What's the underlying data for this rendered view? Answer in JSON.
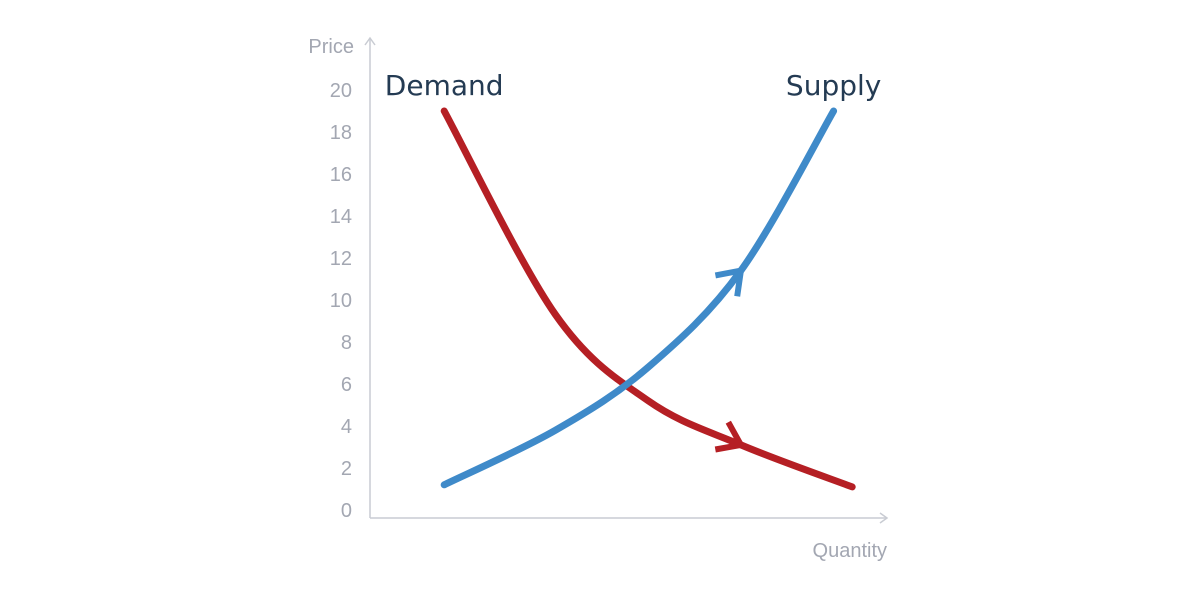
{
  "chart_data": {
    "type": "line",
    "title": "",
    "xlabel": "Quantity",
    "ylabel": "Price",
    "ylim": [
      0,
      20
    ],
    "yticks": [
      0,
      2,
      4,
      6,
      8,
      10,
      12,
      14,
      16,
      18,
      20
    ],
    "grid": false,
    "series": [
      {
        "name": "Demand",
        "color": "#b51f24",
        "points": [
          [
            1.6,
            19
          ],
          [
            4.0,
            9.3
          ],
          [
            6.0,
            5.2
          ],
          [
            8.0,
            3.1
          ],
          [
            10.4,
            1.1
          ]
        ]
      },
      {
        "name": "Supply",
        "color": "#3f8ac9",
        "points": [
          [
            1.6,
            1.2
          ],
          [
            4.0,
            3.8
          ],
          [
            6.0,
            6.8
          ],
          [
            8.0,
            11.4
          ],
          [
            10.0,
            19.0
          ]
        ]
      }
    ]
  }
}
